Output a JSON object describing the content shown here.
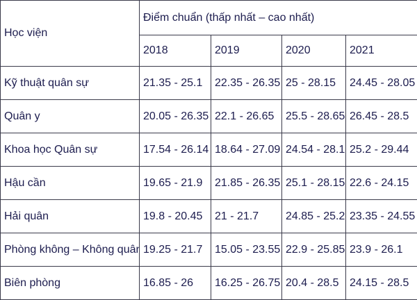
{
  "table": {
    "header": {
      "first": "Học viện",
      "group": "Điểm chuẩn (thấp nhất – cao nhất)",
      "years": [
        "2018",
        "2019",
        "2020",
        "2021"
      ]
    },
    "rows": [
      [
        "Kỹ thuật quân sự",
        "21.35 - 25.1",
        "22.35 - 26.35",
        "25 - 28.15",
        "24.45 - 28.05"
      ],
      [
        "Quân y",
        "20.05 - 26.35",
        "22.1 - 26.65",
        "25.5 - 28.65",
        "26.45 - 28.5"
      ],
      [
        "Khoa học Quân sự",
        "17.54 - 26.14",
        "18.64 - 27.09",
        "24.54 - 28.1",
        "25.2 - 29.44"
      ],
      [
        "Hậu cần",
        "19.65 - 21.9",
        "21.85 - 26.35",
        "25.1 - 28.15",
        "22.6 - 24.15"
      ],
      [
        "Hải quân",
        "19.8 - 20.45",
        "21 - 21.7",
        "24.85 - 25.2",
        "23.35 - 24.55"
      ],
      [
        "Phòng không – Không quân",
        "19.25 - 21.7",
        "15.05 - 23.55",
        "22.9 - 25.85",
        "23.9 - 26.1"
      ],
      [
        "Biên phòng",
        "16.85 - 26",
        "16.25 - 26.75",
        "20.4 - 28.5",
        "24.15 - 28.5"
      ]
    ]
  }
}
